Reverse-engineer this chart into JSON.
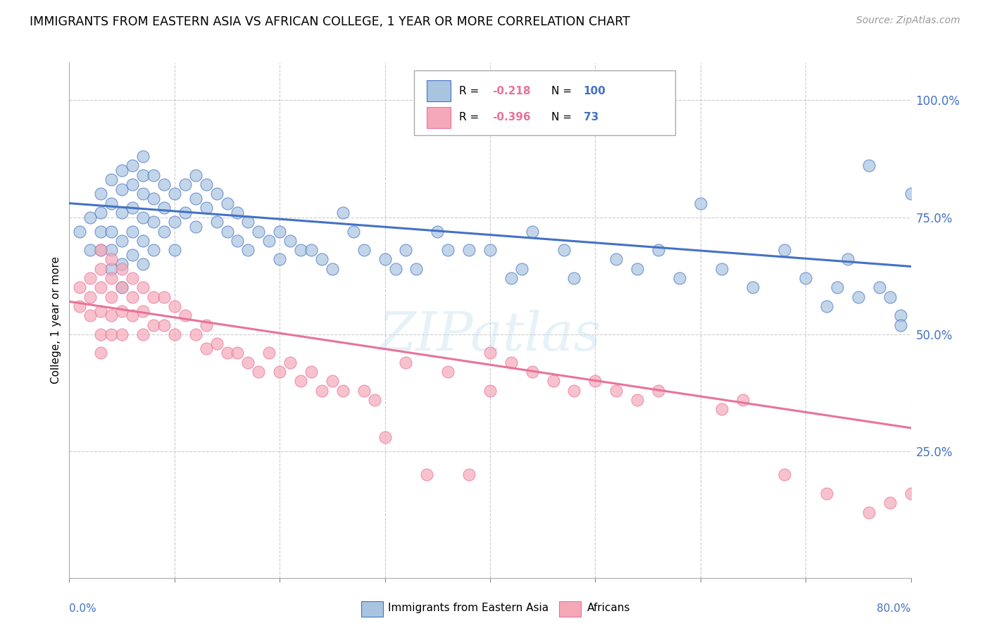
{
  "title": "IMMIGRANTS FROM EASTERN ASIA VS AFRICAN COLLEGE, 1 YEAR OR MORE CORRELATION CHART",
  "source": "Source: ZipAtlas.com",
  "ylabel": "College, 1 year or more",
  "xlim": [
    0.0,
    0.8
  ],
  "ylim": [
    -0.02,
    1.08
  ],
  "yticks": [
    0.25,
    0.5,
    0.75,
    1.0
  ],
  "ytick_labels": [
    "25.0%",
    "50.0%",
    "75.0%",
    "100.0%"
  ],
  "blue_color": "#A8C4E0",
  "pink_color": "#F4A8B8",
  "blue_line_color": "#4472C4",
  "pink_line_color": "#E8739A",
  "r1_value": "-0.218",
  "n1_value": "100",
  "r2_value": "-0.396",
  "n2_value": "73",
  "watermark": "ZIPatlas",
  "blue_scatter_x": [
    0.01,
    0.02,
    0.02,
    0.03,
    0.03,
    0.03,
    0.03,
    0.04,
    0.04,
    0.04,
    0.04,
    0.04,
    0.05,
    0.05,
    0.05,
    0.05,
    0.05,
    0.05,
    0.06,
    0.06,
    0.06,
    0.06,
    0.06,
    0.07,
    0.07,
    0.07,
    0.07,
    0.07,
    0.07,
    0.08,
    0.08,
    0.08,
    0.08,
    0.09,
    0.09,
    0.09,
    0.1,
    0.1,
    0.1,
    0.11,
    0.11,
    0.12,
    0.12,
    0.12,
    0.13,
    0.13,
    0.14,
    0.14,
    0.15,
    0.15,
    0.16,
    0.16,
    0.17,
    0.17,
    0.18,
    0.19,
    0.2,
    0.2,
    0.21,
    0.22,
    0.23,
    0.24,
    0.25,
    0.26,
    0.27,
    0.28,
    0.3,
    0.31,
    0.32,
    0.33,
    0.35,
    0.36,
    0.38,
    0.4,
    0.42,
    0.43,
    0.44,
    0.47,
    0.48,
    0.5,
    0.5,
    0.52,
    0.54,
    0.56,
    0.58,
    0.6,
    0.62,
    0.65,
    0.68,
    0.7,
    0.72,
    0.73,
    0.74,
    0.75,
    0.76,
    0.77,
    0.78,
    0.79,
    0.79,
    0.8
  ],
  "blue_scatter_y": [
    0.72,
    0.68,
    0.75,
    0.76,
    0.8,
    0.72,
    0.68,
    0.83,
    0.78,
    0.72,
    0.68,
    0.64,
    0.85,
    0.81,
    0.76,
    0.7,
    0.65,
    0.6,
    0.86,
    0.82,
    0.77,
    0.72,
    0.67,
    0.88,
    0.84,
    0.8,
    0.75,
    0.7,
    0.65,
    0.84,
    0.79,
    0.74,
    0.68,
    0.82,
    0.77,
    0.72,
    0.8,
    0.74,
    0.68,
    0.82,
    0.76,
    0.84,
    0.79,
    0.73,
    0.82,
    0.77,
    0.8,
    0.74,
    0.78,
    0.72,
    0.76,
    0.7,
    0.74,
    0.68,
    0.72,
    0.7,
    0.72,
    0.66,
    0.7,
    0.68,
    0.68,
    0.66,
    0.64,
    0.76,
    0.72,
    0.68,
    0.66,
    0.64,
    0.68,
    0.64,
    0.72,
    0.68,
    0.68,
    0.68,
    0.62,
    0.64,
    0.72,
    0.68,
    0.62,
    0.98,
    0.94,
    0.66,
    0.64,
    0.68,
    0.62,
    0.78,
    0.64,
    0.6,
    0.68,
    0.62,
    0.56,
    0.6,
    0.66,
    0.58,
    0.86,
    0.6,
    0.58,
    0.54,
    0.52,
    0.8
  ],
  "pink_scatter_x": [
    0.01,
    0.01,
    0.02,
    0.02,
    0.02,
    0.03,
    0.03,
    0.03,
    0.03,
    0.03,
    0.03,
    0.04,
    0.04,
    0.04,
    0.04,
    0.04,
    0.05,
    0.05,
    0.05,
    0.05,
    0.06,
    0.06,
    0.06,
    0.07,
    0.07,
    0.07,
    0.08,
    0.08,
    0.09,
    0.09,
    0.1,
    0.1,
    0.11,
    0.12,
    0.13,
    0.13,
    0.14,
    0.15,
    0.16,
    0.17,
    0.18,
    0.19,
    0.2,
    0.21,
    0.22,
    0.23,
    0.24,
    0.25,
    0.26,
    0.28,
    0.29,
    0.3,
    0.32,
    0.34,
    0.36,
    0.38,
    0.4,
    0.4,
    0.42,
    0.44,
    0.46,
    0.48,
    0.5,
    0.52,
    0.54,
    0.56,
    0.62,
    0.64,
    0.68,
    0.72,
    0.76,
    0.78,
    0.8
  ],
  "pink_scatter_y": [
    0.6,
    0.56,
    0.62,
    0.58,
    0.54,
    0.68,
    0.64,
    0.6,
    0.55,
    0.5,
    0.46,
    0.66,
    0.62,
    0.58,
    0.54,
    0.5,
    0.64,
    0.6,
    0.55,
    0.5,
    0.62,
    0.58,
    0.54,
    0.6,
    0.55,
    0.5,
    0.58,
    0.52,
    0.58,
    0.52,
    0.56,
    0.5,
    0.54,
    0.5,
    0.52,
    0.47,
    0.48,
    0.46,
    0.46,
    0.44,
    0.42,
    0.46,
    0.42,
    0.44,
    0.4,
    0.42,
    0.38,
    0.4,
    0.38,
    0.38,
    0.36,
    0.28,
    0.44,
    0.2,
    0.42,
    0.2,
    0.46,
    0.38,
    0.44,
    0.42,
    0.4,
    0.38,
    0.4,
    0.38,
    0.36,
    0.38,
    0.34,
    0.36,
    0.2,
    0.16,
    0.12,
    0.14,
    0.16
  ],
  "blue_trend_y_start": 0.78,
  "blue_trend_y_end": 0.645,
  "pink_trend_y_start": 0.57,
  "pink_trend_y_end": 0.3
}
